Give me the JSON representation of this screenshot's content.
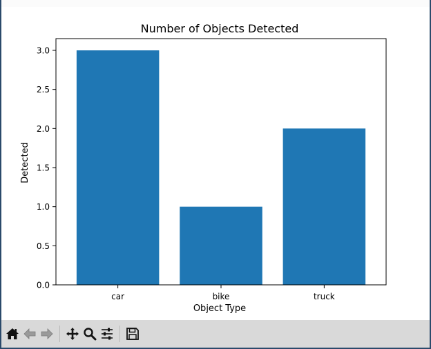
{
  "chart_data": {
    "type": "bar",
    "title": "Number of Objects Detected",
    "xlabel": "Object Type",
    "ylabel": "Detected",
    "categories": [
      "car",
      "bike",
      "truck"
    ],
    "values": [
      3,
      1,
      2
    ],
    "ylim": [
      0,
      3.15
    ],
    "yticks": [
      "0.0",
      "0.5",
      "1.0",
      "1.5",
      "2.0",
      "2.5",
      "3.0"
    ],
    "bar_color": "#1f77b4",
    "grid": false,
    "legend": "none"
  },
  "toolbar": {
    "buttons": [
      {
        "icon": "home-icon",
        "name": "home-button"
      },
      {
        "icon": "back-arrow-icon",
        "name": "back-button"
      },
      {
        "icon": "forward-arrow-icon",
        "name": "forward-button"
      },
      {
        "icon": "pan-icon",
        "name": "pan-button"
      },
      {
        "icon": "zoom-icon",
        "name": "zoom-button"
      },
      {
        "icon": "configure-subplots-icon",
        "name": "configure-subplots-button"
      },
      {
        "icon": "save-icon",
        "name": "save-button"
      }
    ]
  }
}
